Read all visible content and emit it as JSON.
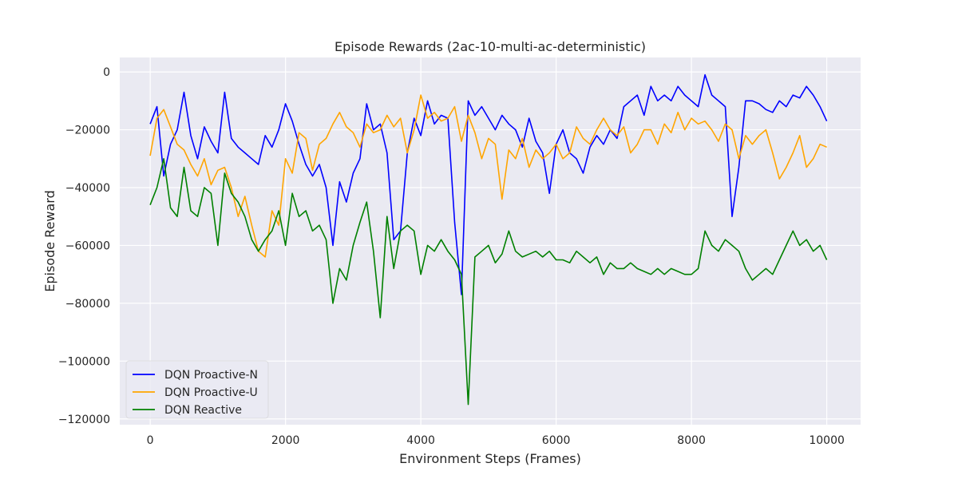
{
  "chart_data": {
    "type": "line",
    "title": "Episode Rewards (2ac-10-multi-ac-deterministic)",
    "xlabel": "Environment Steps (Frames)",
    "ylabel": "Episode Reward",
    "xlim": [
      -450,
      10500
    ],
    "ylim": [
      -122000,
      5000
    ],
    "xticks": [
      0,
      2000,
      4000,
      6000,
      8000,
      10000
    ],
    "yticks": [
      0,
      -20000,
      -40000,
      -60000,
      -80000,
      -100000,
      -120000
    ],
    "xtick_labels": [
      "0",
      "2000",
      "4000",
      "6000",
      "8000",
      "10000"
    ],
    "ytick_labels": [
      "0",
      "−20000",
      "−40000",
      "−60000",
      "−80000",
      "−100000",
      "−120000"
    ],
    "grid": true,
    "legend_position": "lower-left",
    "x": [
      0,
      100,
      200,
      300,
      400,
      500,
      600,
      700,
      800,
      900,
      1000,
      1100,
      1200,
      1300,
      1400,
      1500,
      1600,
      1700,
      1800,
      1900,
      2000,
      2100,
      2200,
      2300,
      2400,
      2500,
      2600,
      2700,
      2800,
      2900,
      3000,
      3100,
      3200,
      3300,
      3400,
      3500,
      3600,
      3700,
      3800,
      3900,
      4000,
      4100,
      4200,
      4300,
      4400,
      4500,
      4600,
      4700,
      4800,
      4900,
      5000,
      5100,
      5200,
      5300,
      5400,
      5500,
      5600,
      5700,
      5800,
      5900,
      6000,
      6100,
      6200,
      6300,
      6400,
      6500,
      6600,
      6700,
      6800,
      6900,
      7000,
      7100,
      7200,
      7300,
      7400,
      7500,
      7600,
      7700,
      7800,
      7900,
      8000,
      8100,
      8200,
      8300,
      8400,
      8500,
      8600,
      8700,
      8800,
      8900,
      9000,
      9100,
      9200,
      9300,
      9400,
      9500,
      9600,
      9700,
      9800,
      9900,
      10000
    ],
    "series": [
      {
        "name": "DQN Proactive-N",
        "color": "#0000ff",
        "values": [
          -18000,
          -12000,
          -36000,
          -25000,
          -20000,
          -7000,
          -22000,
          -30000,
          -19000,
          -24000,
          -28000,
          -7000,
          -23000,
          -26000,
          -28000,
          -30000,
          -32000,
          -22000,
          -26000,
          -20000,
          -11000,
          -17000,
          -25000,
          -32000,
          -36000,
          -32000,
          -40000,
          -60000,
          -38000,
          -45000,
          -35000,
          -30000,
          -11000,
          -20000,
          -18000,
          -28000,
          -58000,
          -55000,
          -28000,
          -16000,
          -22000,
          -10000,
          -18000,
          -15000,
          -16000,
          -52000,
          -77000,
          -10000,
          -15000,
          -12000,
          -16000,
          -20000,
          -15000,
          -18000,
          -20000,
          -26000,
          -16000,
          -24000,
          -28000,
          -42000,
          -25000,
          -20000,
          -28000,
          -30000,
          -35000,
          -26000,
          -22000,
          -25000,
          -20000,
          -23000,
          -12000,
          -10000,
          -8000,
          -15000,
          -5000,
          -10000,
          -8000,
          -10000,
          -5000,
          -8000,
          -10000,
          -12000,
          -1000,
          -8000,
          -10000,
          -12000,
          -50000,
          -33000,
          -10000,
          -10000,
          -11000,
          -13000,
          -14000,
          -10000,
          -12000,
          -8000,
          -9000,
          -5000,
          -8000,
          -12000,
          -17000
        ]
      },
      {
        "name": "DQN Proactive-U",
        "color": "#ffa500",
        "values": [
          -29000,
          -16000,
          -13000,
          -19000,
          -25000,
          -27000,
          -32000,
          -36000,
          -30000,
          -39000,
          -34000,
          -33000,
          -40000,
          -50000,
          -43000,
          -53000,
          -62000,
          -64000,
          -48000,
          -53000,
          -30000,
          -35000,
          -21000,
          -23000,
          -34000,
          -25000,
          -23000,
          -18000,
          -14000,
          -19000,
          -21000,
          -26000,
          -18000,
          -21000,
          -20000,
          -15000,
          -19000,
          -16000,
          -28000,
          -20000,
          -8000,
          -16000,
          -14000,
          -17000,
          -16000,
          -12000,
          -24000,
          -15000,
          -21000,
          -30000,
          -23000,
          -25000,
          -44000,
          -27000,
          -30000,
          -23000,
          -33000,
          -27000,
          -30000,
          -28000,
          -25000,
          -30000,
          -28000,
          -19000,
          -23000,
          -25000,
          -20000,
          -16000,
          -20000,
          -22000,
          -19000,
          -28000,
          -25000,
          -20000,
          -20000,
          -25000,
          -18000,
          -21000,
          -14000,
          -20000,
          -16000,
          -18000,
          -17000,
          -20000,
          -24000,
          -18000,
          -20000,
          -30000,
          -22000,
          -25000,
          -22000,
          -20000,
          -28000,
          -37000,
          -33000,
          -28000,
          -22000,
          -33000,
          -30000,
          -25000,
          -26000
        ]
      },
      {
        "name": "DQN Reactive",
        "color": "#008000",
        "values": [
          -46000,
          -40000,
          -30000,
          -47000,
          -50000,
          -33000,
          -48000,
          -50000,
          -40000,
          -42000,
          -60000,
          -35000,
          -42000,
          -45000,
          -50000,
          -58000,
          -62000,
          -58000,
          -55000,
          -48000,
          -60000,
          -42000,
          -50000,
          -48000,
          -55000,
          -53000,
          -58000,
          -80000,
          -68000,
          -72000,
          -60000,
          -52000,
          -45000,
          -62000,
          -85000,
          -50000,
          -68000,
          -55000,
          -53000,
          -55000,
          -70000,
          -60000,
          -62000,
          -58000,
          -62000,
          -65000,
          -70000,
          -115000,
          -64000,
          -62000,
          -60000,
          -66000,
          -63000,
          -55000,
          -62000,
          -64000,
          -63000,
          -62000,
          -64000,
          -62000,
          -65000,
          -65000,
          -66000,
          -62000,
          -64000,
          -66000,
          -64000,
          -70000,
          -66000,
          -68000,
          -68000,
          -66000,
          -68000,
          -69000,
          -70000,
          -68000,
          -70000,
          -68000,
          -69000,
          -70000,
          -70000,
          -68000,
          -55000,
          -60000,
          -62000,
          -58000,
          -60000,
          -62000,
          -68000,
          -72000,
          -70000,
          -68000,
          -70000,
          -65000,
          -60000,
          -55000,
          -60000,
          -58000,
          -62000,
          -60000,
          -65000
        ]
      }
    ]
  }
}
